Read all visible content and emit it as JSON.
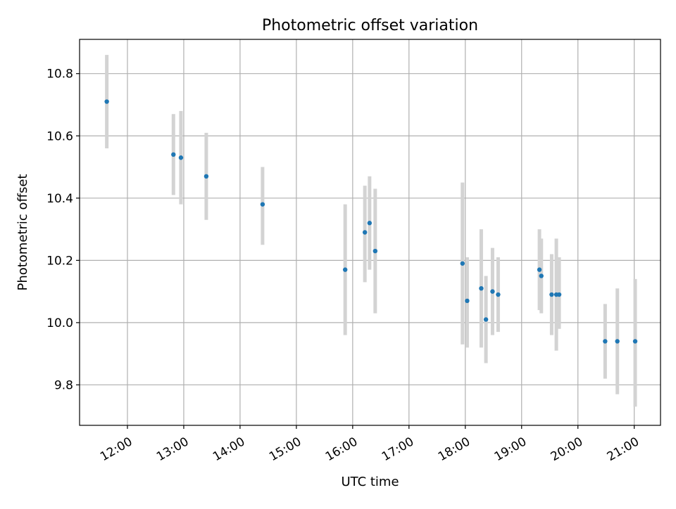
{
  "chart_data": {
    "type": "scatter",
    "title": "Photometric offset variation",
    "xlabel": "UTC time",
    "ylabel": "Photometric offset",
    "x_ticks": [
      "12:00",
      "13:00",
      "14:00",
      "15:00",
      "16:00",
      "17:00",
      "18:00",
      "19:00",
      "20:00",
      "21:00"
    ],
    "y_ticks": [
      "9.8",
      "10.0",
      "10.2",
      "10.4",
      "10.6",
      "10.8"
    ],
    "xlim": [
      "11:09",
      "21:28"
    ],
    "ylim": [
      9.67,
      10.91
    ],
    "grid": true,
    "legend": "none",
    "point_color": "#1f77b4",
    "errorbar_color": "#d3d3d3",
    "points": [
      {
        "x": "11:38",
        "y": 10.71,
        "yerr_low": 10.56,
        "yerr_high": 10.86
      },
      {
        "x": "12:49",
        "y": 10.54,
        "yerr_low": 10.41,
        "yerr_high": 10.67
      },
      {
        "x": "12:57",
        "y": 10.53,
        "yerr_low": 10.38,
        "yerr_high": 10.68
      },
      {
        "x": "13:24",
        "y": 10.47,
        "yerr_low": 10.33,
        "yerr_high": 10.61
      },
      {
        "x": "14:24",
        "y": 10.38,
        "yerr_low": 10.25,
        "yerr_high": 10.5
      },
      {
        "x": "15:52",
        "y": 10.17,
        "yerr_low": 9.96,
        "yerr_high": 10.38
      },
      {
        "x": "16:13",
        "y": 10.29,
        "yerr_low": 10.13,
        "yerr_high": 10.44
      },
      {
        "x": "16:18",
        "y": 10.32,
        "yerr_low": 10.17,
        "yerr_high": 10.47
      },
      {
        "x": "16:24",
        "y": 10.23,
        "yerr_low": 10.03,
        "yerr_high": 10.43
      },
      {
        "x": "17:57",
        "y": 10.19,
        "yerr_low": 9.93,
        "yerr_high": 10.45
      },
      {
        "x": "18:02",
        "y": 10.07,
        "yerr_low": 9.92,
        "yerr_high": 10.21
      },
      {
        "x": "18:17",
        "y": 10.11,
        "yerr_low": 9.92,
        "yerr_high": 10.3
      },
      {
        "x": "18:22",
        "y": 10.01,
        "yerr_low": 9.87,
        "yerr_high": 10.15
      },
      {
        "x": "18:29",
        "y": 10.1,
        "yerr_low": 9.96,
        "yerr_high": 10.24
      },
      {
        "x": "18:35",
        "y": 10.09,
        "yerr_low": 9.97,
        "yerr_high": 10.21
      },
      {
        "x": "19:19",
        "y": 10.17,
        "yerr_low": 10.04,
        "yerr_high": 10.3
      },
      {
        "x": "19:21",
        "y": 10.15,
        "yerr_low": 10.03,
        "yerr_high": 10.27
      },
      {
        "x": "19:32",
        "y": 10.09,
        "yerr_low": 9.96,
        "yerr_high": 10.22
      },
      {
        "x": "19:37",
        "y": 10.09,
        "yerr_low": 9.91,
        "yerr_high": 10.27
      },
      {
        "x": "19:40",
        "y": 10.09,
        "yerr_low": 9.98,
        "yerr_high": 10.21
      },
      {
        "x": "20:29",
        "y": 9.94,
        "yerr_low": 9.82,
        "yerr_high": 10.06
      },
      {
        "x": "20:42",
        "y": 9.94,
        "yerr_low": 9.77,
        "yerr_high": 10.11
      },
      {
        "x": "21:01",
        "y": 9.94,
        "yerr_low": 9.73,
        "yerr_high": 10.14
      }
    ]
  }
}
